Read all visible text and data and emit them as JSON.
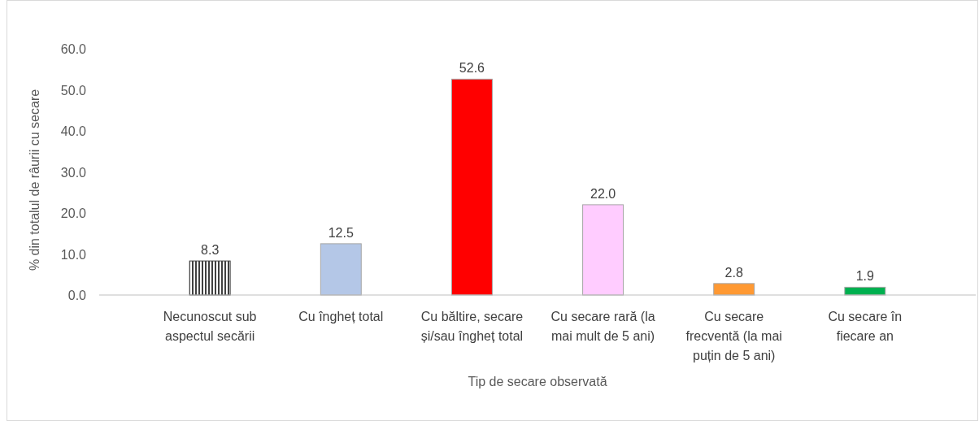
{
  "chart_data": {
    "type": "bar",
    "xlabel": "Tip de secare observată",
    "ylabel": "% din totalul de râurii cu secare",
    "categories": [
      "Necunoscut sub aspectul secării",
      "Cu îngheț total",
      "Cu băltire, secare și/sau îngheț total",
      "Cu secare rară (la mai mult de 5 ani)",
      "Cu secare frecventă (la mai puțin de 5 ani)",
      "Cu secare în fiecare an"
    ],
    "values": [
      8.3,
      12.5,
      52.6,
      22.0,
      2.8,
      1.9
    ],
    "value_labels": [
      "8.3",
      "12.5",
      "52.6",
      "22.0",
      "2.8",
      "1.9"
    ],
    "colors": [
      "#404040",
      "#b4c7e7",
      "#ff0000",
      "#ffccff",
      "#ff9933",
      "#00b050"
    ],
    "ylim": [
      0,
      60
    ],
    "yticks": [
      {
        "value": 0,
        "label": "0.0"
      },
      {
        "value": 10,
        "label": "10.0"
      },
      {
        "value": 20,
        "label": "20.0"
      },
      {
        "value": 30,
        "label": "30.0"
      },
      {
        "value": 40,
        "label": "40.0"
      },
      {
        "value": 50,
        "label": "50.0"
      },
      {
        "value": 60,
        "label": "60.0"
      }
    ]
  }
}
